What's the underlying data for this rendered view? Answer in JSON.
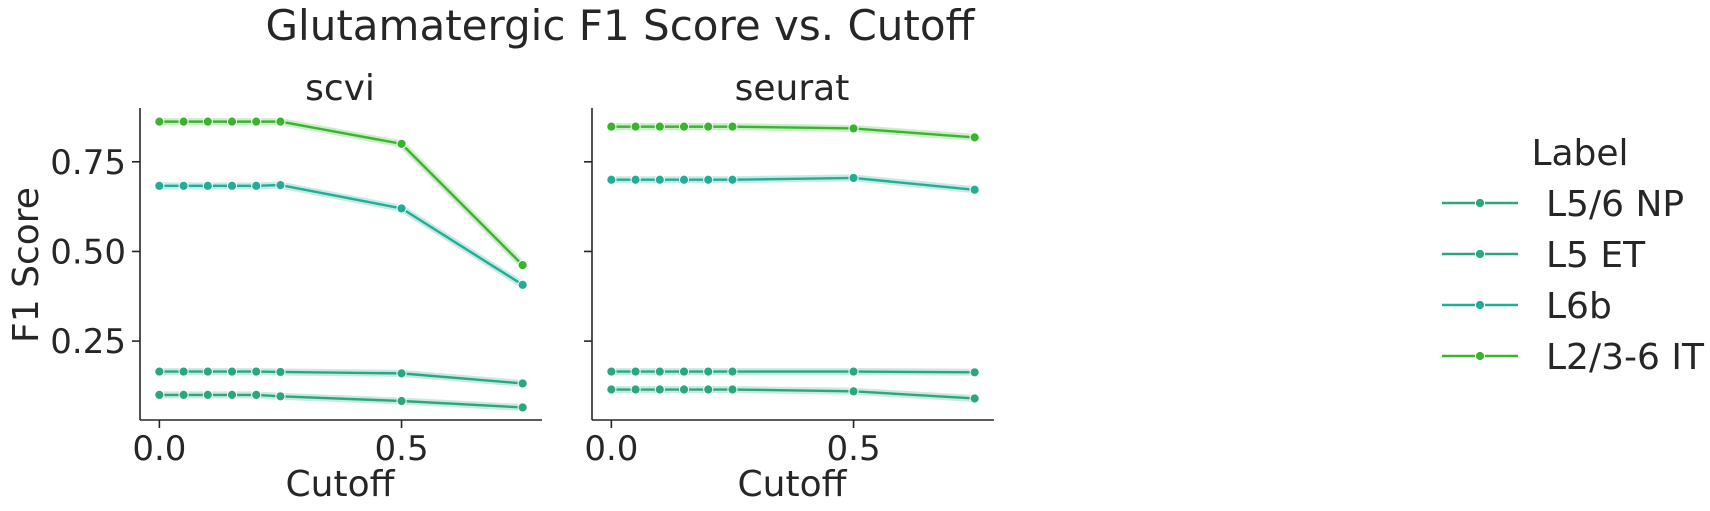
{
  "chart_data": {
    "type": "line",
    "title": "Glutamatergic F1 Score vs. Cutoff",
    "ylabel": "F1 Score",
    "xlabel": "Cutoff",
    "xlim": [
      -0.04,
      0.79
    ],
    "ylim": [
      0.03,
      0.9
    ],
    "xticks": [
      0.0,
      0.5
    ],
    "xtick_labels": [
      "0.0",
      "0.5"
    ],
    "yticks": [
      0.25,
      0.5,
      0.75
    ],
    "ytick_labels": [
      "0.25",
      "0.50",
      "0.75"
    ],
    "legend": {
      "title": "Label",
      "placement": "right",
      "entries": [
        {
          "name": "L5/6 NP",
          "color": "#2aa77f"
        },
        {
          "name": "L5 ET",
          "color": "#28a785"
        },
        {
          "name": "L6b",
          "color": "#23ad96"
        },
        {
          "name": "L2/3-6 IT",
          "color": "#38b52c"
        }
      ]
    },
    "x": [
      0.0,
      0.05,
      0.1,
      0.15,
      0.2,
      0.25,
      0.5,
      0.75
    ],
    "panels": [
      {
        "title": "scvi",
        "series": [
          {
            "name": "L5/6 NP",
            "color": "#2aa77f",
            "values": [
              0.1,
              0.1,
              0.1,
              0.1,
              0.1,
              0.096,
              0.083,
              0.065
            ]
          },
          {
            "name": "L5 ET",
            "color": "#28a785",
            "values": [
              0.165,
              0.165,
              0.165,
              0.165,
              0.165,
              0.164,
              0.16,
              0.132
            ]
          },
          {
            "name": "L6b",
            "color": "#23ad96",
            "values": [
              0.683,
              0.683,
              0.683,
              0.683,
              0.683,
              0.685,
              0.62,
              0.407
            ]
          },
          {
            "name": "L2/3-6 IT",
            "color": "#38b52c",
            "values": [
              0.862,
              0.862,
              0.862,
              0.862,
              0.862,
              0.862,
              0.8,
              0.462
            ]
          }
        ]
      },
      {
        "title": "seurat",
        "series": [
          {
            "name": "L5/6 NP",
            "color": "#2aa77f",
            "values": [
              0.115,
              0.115,
              0.115,
              0.115,
              0.115,
              0.115,
              0.11,
              0.09
            ]
          },
          {
            "name": "L5 ET",
            "color": "#28a785",
            "values": [
              0.165,
              0.165,
              0.165,
              0.165,
              0.165,
              0.165,
              0.165,
              0.163
            ]
          },
          {
            "name": "L6b",
            "color": "#23ad96",
            "values": [
              0.7,
              0.7,
              0.7,
              0.7,
              0.7,
              0.7,
              0.705,
              0.672
            ]
          },
          {
            "name": "L2/3-6 IT",
            "color": "#38b52c",
            "values": [
              0.848,
              0.848,
              0.848,
              0.848,
              0.848,
              0.848,
              0.843,
              0.818
            ]
          }
        ]
      }
    ]
  }
}
